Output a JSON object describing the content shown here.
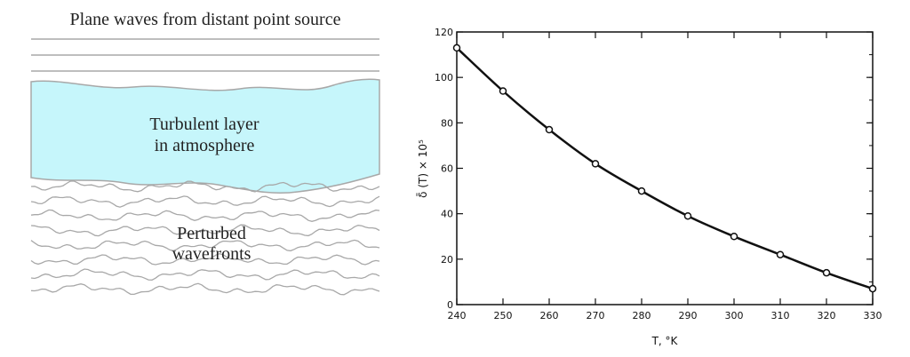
{
  "diagram": {
    "top_caption": "Plane waves from distant point source",
    "layer_label_line1": "Turbulent layer",
    "layer_label_line2": "in atmosphere",
    "bottom_label_line1": "Perturbed",
    "bottom_label_line2": "wavefronts",
    "colors": {
      "layer_fill": "#c6f6fb",
      "line": "#a8a8a8"
    }
  },
  "chart_data": {
    "type": "line",
    "title": "",
    "xlabel": "T, °K",
    "ylabel": "δ̄ (T) × 10⁵",
    "xlim": [
      240,
      330
    ],
    "ylim": [
      0,
      120
    ],
    "x_ticks": [
      "240",
      "250",
      "260",
      "270",
      "280",
      "290",
      "300",
      "310",
      "320",
      "330"
    ],
    "y_ticks": [
      "0",
      "20",
      "40",
      "60",
      "80",
      "100",
      "120"
    ],
    "grid": false,
    "series": [
      {
        "x": [
          240,
          250,
          260,
          270,
          280,
          290,
          300,
          310,
          320,
          330
        ],
        "values": [
          113,
          94,
          77,
          62,
          50,
          39,
          30,
          22,
          14,
          7
        ]
      }
    ]
  }
}
